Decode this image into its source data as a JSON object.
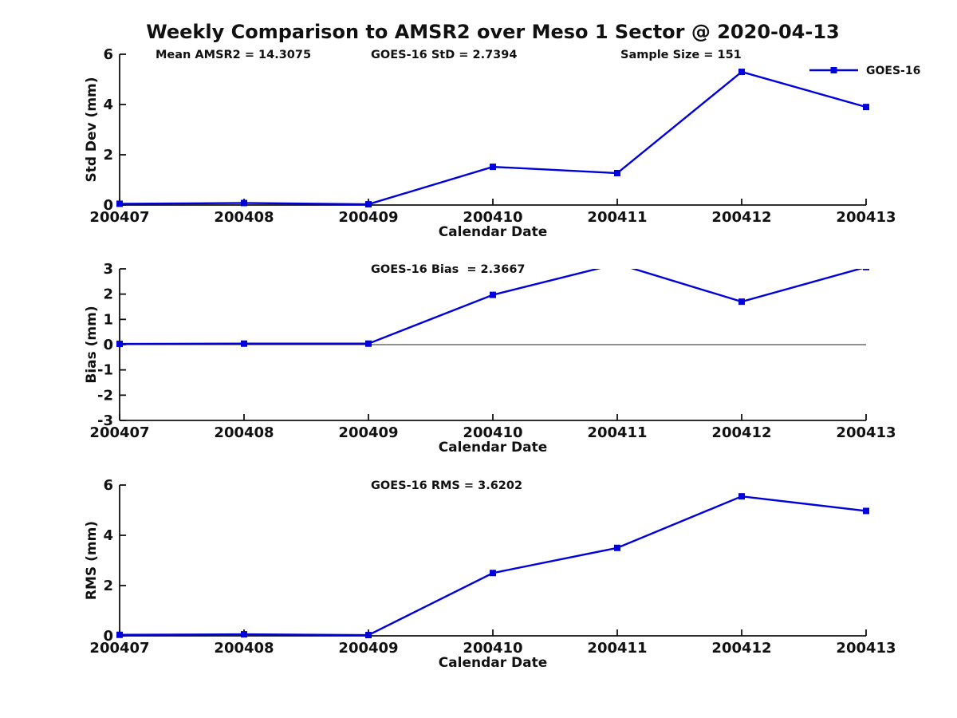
{
  "page": {
    "title": "Weekly Comparison to AMSR2 over Meso 1 Sector @ 2020-04-13"
  },
  "colors": {
    "line": "#0000dd",
    "text": "#111111",
    "axis": "#111111",
    "zero_line": "#222222",
    "background": "#ffffff"
  },
  "chart_data": [
    {
      "type": "line",
      "id": "stddev",
      "title": "",
      "xlabel": "Calendar Date",
      "ylabel": "Std Dev (mm)",
      "categories": [
        "200407",
        "200408",
        "200409",
        "200410",
        "200411",
        "200412",
        "200413"
      ],
      "series": [
        {
          "name": "GOES-16",
          "marker": "square",
          "values": [
            0.05,
            0.08,
            0.03,
            1.52,
            1.27,
            5.3,
            3.9
          ]
        }
      ],
      "ylim": [
        0,
        6
      ],
      "yticks": [
        0,
        2,
        4,
        6
      ],
      "grid": false,
      "annotations": [
        "Mean AMSR2 = 14.3075",
        "GOES-16 StD = 2.7394",
        "Sample Size = 151"
      ],
      "legend": {
        "label": "GOES-16",
        "position": "top-right"
      }
    },
    {
      "type": "line",
      "id": "bias",
      "title": "",
      "xlabel": "Calendar Date",
      "ylabel": "Bias (mm)",
      "categories": [
        "200407",
        "200408",
        "200409",
        "200410",
        "200411",
        "200412",
        "200413"
      ],
      "series": [
        {
          "name": "GOES-16",
          "marker": "square",
          "values": [
            0.03,
            0.04,
            0.04,
            1.97,
            3.2,
            1.7,
            3.07
          ]
        }
      ],
      "ylim": [
        -3,
        3
      ],
      "yticks": [
        -3,
        -2,
        -1,
        0,
        1,
        2,
        3
      ],
      "grid": false,
      "zero_line": true,
      "clip_to_axes": true,
      "annotations": [
        "GOES-16 Bias  = 2.3667"
      ]
    },
    {
      "type": "line",
      "id": "rms",
      "title": "",
      "xlabel": "Calendar Date",
      "ylabel": "RMS (mm)",
      "categories": [
        "200407",
        "200408",
        "200409",
        "200410",
        "200411",
        "200412",
        "200413"
      ],
      "series": [
        {
          "name": "GOES-16",
          "marker": "square",
          "values": [
            0.04,
            0.06,
            0.03,
            2.5,
            3.5,
            5.55,
            4.97
          ]
        }
      ],
      "ylim": [
        0,
        6
      ],
      "yticks": [
        0,
        2,
        4,
        6
      ],
      "grid": false,
      "annotations": [
        "GOES-16 RMS = 3.6202"
      ]
    }
  ]
}
